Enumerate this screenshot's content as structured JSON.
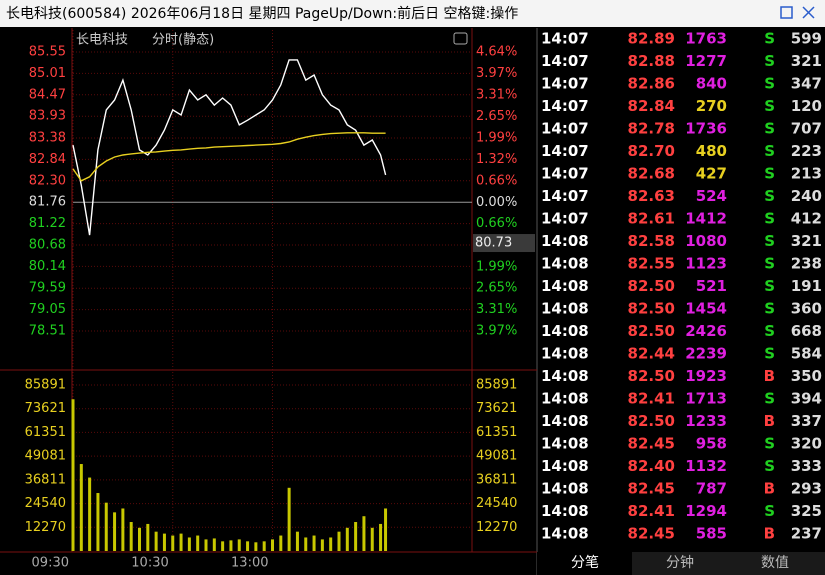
{
  "header": {
    "title": "长电科技(600584) 2026年06月18日 星期四 PageUp/Down:前后日 空格键:操作"
  },
  "chart_data": [
    {
      "type": "line",
      "title": "长电科技",
      "subtitle": "分时(静态)",
      "x": [
        "09:30",
        "09:35",
        "09:40",
        "09:45",
        "09:50",
        "09:55",
        "10:00",
        "10:05",
        "10:10",
        "10:15",
        "10:20",
        "10:25",
        "10:30",
        "10:35",
        "10:40",
        "10:45",
        "10:50",
        "10:55",
        "11:00",
        "11:05",
        "11:10",
        "11:15",
        "11:20",
        "11:25",
        "11:30",
        "13:05",
        "13:10",
        "13:15",
        "13:20",
        "13:25",
        "13:30",
        "13:35",
        "13:40",
        "13:45",
        "13:50",
        "13:55",
        "14:00",
        "14:05",
        "14:08"
      ],
      "series": [
        {
          "color": "#ffffff",
          "values": [
            83.2,
            82.19,
            80.93,
            83.08,
            84.09,
            84.34,
            84.84,
            84.09,
            83.08,
            82.95,
            83.2,
            83.58,
            84.09,
            83.96,
            84.59,
            84.34,
            84.47,
            84.21,
            84.39,
            84.21,
            83.71,
            83.83,
            83.96,
            84.09,
            84.34,
            84.72,
            85.35,
            85.35,
            84.84,
            84.97,
            84.47,
            84.21,
            84.09,
            83.71,
            83.58,
            83.2,
            83.33,
            82.95,
            82.45
          ]
        },
        {
          "color": "#e8d020",
          "values": [
            82.6,
            82.3,
            82.4,
            82.65,
            82.8,
            82.9,
            82.95,
            82.98,
            83.0,
            83.02,
            83.03,
            83.05,
            83.07,
            83.08,
            83.1,
            83.12,
            83.13,
            83.15,
            83.16,
            83.17,
            83.18,
            83.19,
            83.2,
            83.21,
            83.22,
            83.24,
            83.28,
            83.35,
            83.4,
            83.44,
            83.47,
            83.49,
            83.5,
            83.51,
            83.51,
            83.51,
            83.5,
            83.5,
            83.5
          ]
        }
      ],
      "xticks": [
        "09:30",
        "10:30",
        "13:00"
      ],
      "ylim": [
        78.51,
        85.55
      ],
      "yticks": [
        85.55,
        85.01,
        84.47,
        83.93,
        83.38,
        82.84,
        {
          "value": 82.3,
          "label": "82.30"
        },
        81.76,
        81.22,
        80.68,
        80.14,
        79.59,
        79.05,
        78.51
      ],
      "y2lim": [
        -3.97,
        4.64
      ],
      "y2ticks": [
        {
          "value": 4.64,
          "label": "4.64%"
        },
        {
          "value": 3.97,
          "label": "3.97%"
        },
        {
          "value": 3.31,
          "label": "3.31%"
        },
        {
          "value": 2.65,
          "label": "2.65%"
        },
        {
          "value": 1.99,
          "label": "1.99%"
        },
        {
          "value": 1.32,
          "label": "1.32%"
        },
        {
          "value": 0.66,
          "label": "0.66%"
        },
        {
          "value": 0,
          "label": "0.00%"
        },
        {
          "value": -0.66,
          "label": "0.66%"
        },
        {
          "value": -1.32,
          "label": "1.32%"
        },
        {
          "value": -1.99,
          "label": "1.99%"
        },
        {
          "value": -2.65,
          "label": "2.65%"
        },
        {
          "value": -3.31,
          "label": "3.31%"
        },
        {
          "value": -3.97,
          "label": "3.97%"
        }
      ],
      "cursor_value": 80.73,
      "grid": true
    },
    {
      "type": "bar",
      "color": "#c8c800",
      "values": [
        78500,
        45000,
        38000,
        30000,
        25000,
        20000,
        22000,
        15000,
        12000,
        14000,
        10000,
        9000,
        8000,
        9000,
        7000,
        8000,
        6000,
        6500,
        5000,
        5500,
        6000,
        5000,
        4500,
        5000,
        6000,
        8000,
        32700,
        10000,
        7000,
        8000,
        6000,
        7000,
        10000,
        12000,
        15000,
        18000,
        12000,
        14000,
        22000
      ],
      "ylim": [
        0,
        85891
      ],
      "yticks": [
        85891,
        73621,
        61351,
        49081,
        36811,
        24540,
        12270
      ]
    }
  ],
  "trades": {
    "rows": [
      [
        "14:07",
        "82.89",
        "1763",
        "S",
        "599"
      ],
      [
        "14:07",
        "82.88",
        "1277",
        "S",
        "321"
      ],
      [
        "14:07",
        "82.86",
        "840",
        "S",
        "347"
      ],
      [
        "14:07",
        "82.84",
        "270",
        "S",
        "120"
      ],
      [
        "14:07",
        "82.78",
        "1736",
        "S",
        "707"
      ],
      [
        "14:07",
        "82.70",
        "480",
        "S",
        "223"
      ],
      [
        "14:07",
        "82.68",
        "427",
        "S",
        "213"
      ],
      [
        "14:07",
        "82.63",
        "524",
        "S",
        "240"
      ],
      [
        "14:07",
        "82.61",
        "1412",
        "S",
        "412"
      ],
      [
        "14:08",
        "82.58",
        "1080",
        "S",
        "321"
      ],
      [
        "14:08",
        "82.55",
        "1123",
        "S",
        "238"
      ],
      [
        "14:08",
        "82.50",
        "521",
        "S",
        "191"
      ],
      [
        "14:08",
        "82.50",
        "1454",
        "S",
        "360"
      ],
      [
        "14:08",
        "82.50",
        "2426",
        "S",
        "668"
      ],
      [
        "14:08",
        "82.44",
        "2239",
        "S",
        "584"
      ],
      [
        "14:08",
        "82.50",
        "1923",
        "B",
        "350"
      ],
      [
        "14:08",
        "82.41",
        "1713",
        "S",
        "394"
      ],
      [
        "14:08",
        "82.50",
        "1233",
        "B",
        "337"
      ],
      [
        "14:08",
        "82.45",
        "958",
        "S",
        "320"
      ],
      [
        "14:08",
        "82.40",
        "1132",
        "S",
        "333"
      ],
      [
        "14:08",
        "82.45",
        "787",
        "B",
        "293"
      ],
      [
        "14:08",
        "82.41",
        "1294",
        "S",
        "325"
      ],
      [
        "14:08",
        "82.45",
        "585",
        "B",
        "237"
      ]
    ]
  },
  "tabs": [
    "分笔",
    "分钟",
    "数值"
  ]
}
